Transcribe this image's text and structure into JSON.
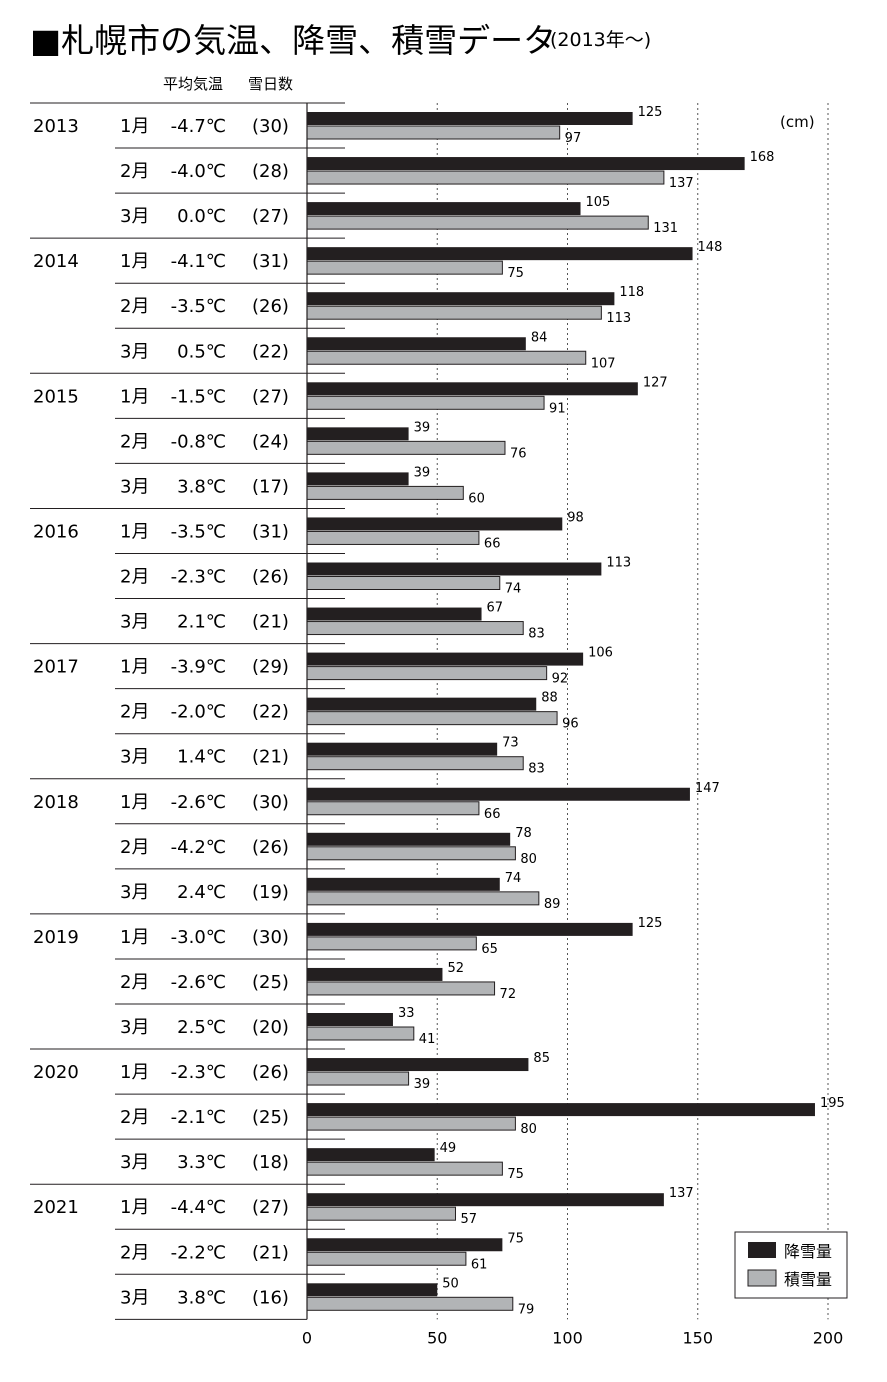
{
  "title": {
    "main": "■札幌市の気温、降雪、積雪データ",
    "sub": "(2013年〜)"
  },
  "headers": {
    "temp": "平均気温",
    "days": "雪日数"
  },
  "colors": {
    "snowfall": "#231f20",
    "depth": "#b2b4b6",
    "depth_border": "#231f20",
    "rule": "#231f20",
    "grid": "#555555"
  },
  "chart_data": {
    "type": "bar",
    "orientation": "horizontal",
    "unit": "(cm)",
    "xlim": [
      0,
      200
    ],
    "xticks": [
      "0",
      "50",
      "100",
      "150",
      "200"
    ],
    "grid": "dotted vertical lines at 50, 100, 150, 200",
    "legend_position": "bottom-right",
    "series": [
      {
        "name": "降雪量",
        "color": "#231f20"
      },
      {
        "name": "積雪量",
        "color": "#b2b4b6"
      }
    ],
    "rows": [
      {
        "year": "2013",
        "month": "1月",
        "temp": "-4.7℃",
        "days": "(30)",
        "snowfall": 125,
        "depth": 97
      },
      {
        "year": "",
        "month": "2月",
        "temp": "-4.0℃",
        "days": "(28)",
        "snowfall": 168,
        "depth": 137
      },
      {
        "year": "",
        "month": "3月",
        "temp": "0.0℃",
        "days": "(27)",
        "snowfall": 105,
        "depth": 131
      },
      {
        "year": "2014",
        "month": "1月",
        "temp": "-4.1℃",
        "days": "(31)",
        "snowfall": 148,
        "depth": 75
      },
      {
        "year": "",
        "month": "2月",
        "temp": "-3.5℃",
        "days": "(26)",
        "snowfall": 118,
        "depth": 113
      },
      {
        "year": "",
        "month": "3月",
        "temp": "0.5℃",
        "days": "(22)",
        "snowfall": 84,
        "depth": 107
      },
      {
        "year": "2015",
        "month": "1月",
        "temp": "-1.5℃",
        "days": "(27)",
        "snowfall": 127,
        "depth": 91
      },
      {
        "year": "",
        "month": "2月",
        "temp": "-0.8℃",
        "days": "(24)",
        "snowfall": 39,
        "depth": 76
      },
      {
        "year": "",
        "month": "3月",
        "temp": "3.8℃",
        "days": "(17)",
        "snowfall": 39,
        "depth": 60
      },
      {
        "year": "2016",
        "month": "1月",
        "temp": "-3.5℃",
        "days": "(31)",
        "snowfall": 98,
        "depth": 66
      },
      {
        "year": "",
        "month": "2月",
        "temp": "-2.3℃",
        "days": "(26)",
        "snowfall": 113,
        "depth": 74
      },
      {
        "year": "",
        "month": "3月",
        "temp": "2.1℃",
        "days": "(21)",
        "snowfall": 67,
        "depth": 83
      },
      {
        "year": "2017",
        "month": "1月",
        "temp": "-3.9℃",
        "days": "(29)",
        "snowfall": 106,
        "depth": 92
      },
      {
        "year": "",
        "month": "2月",
        "temp": "-2.0℃",
        "days": "(22)",
        "snowfall": 88,
        "depth": 96
      },
      {
        "year": "",
        "month": "3月",
        "temp": "1.4℃",
        "days": "(21)",
        "snowfall": 73,
        "depth": 83
      },
      {
        "year": "2018",
        "month": "1月",
        "temp": "-2.6℃",
        "days": "(30)",
        "snowfall": 147,
        "depth": 66
      },
      {
        "year": "",
        "month": "2月",
        "temp": "-4.2℃",
        "days": "(26)",
        "snowfall": 78,
        "depth": 80
      },
      {
        "year": "",
        "month": "3月",
        "temp": "2.4℃",
        "days": "(19)",
        "snowfall": 74,
        "depth": 89
      },
      {
        "year": "2019",
        "month": "1月",
        "temp": "-3.0℃",
        "days": "(30)",
        "snowfall": 125,
        "depth": 65
      },
      {
        "year": "",
        "month": "2月",
        "temp": "-2.6℃",
        "days": "(25)",
        "snowfall": 52,
        "depth": 72
      },
      {
        "year": "",
        "month": "3月",
        "temp": "2.5℃",
        "days": "(20)",
        "snowfall": 33,
        "depth": 41
      },
      {
        "year": "2020",
        "month": "1月",
        "temp": "-2.3℃",
        "days": "(26)",
        "snowfall": 85,
        "depth": 39
      },
      {
        "year": "",
        "month": "2月",
        "temp": "-2.1℃",
        "days": "(25)",
        "snowfall": 195,
        "depth": 80
      },
      {
        "year": "",
        "month": "3月",
        "temp": "3.3℃",
        "days": "(18)",
        "snowfall": 49,
        "depth": 75
      },
      {
        "year": "2021",
        "month": "1月",
        "temp": "-4.4℃",
        "days": "(27)",
        "snowfall": 137,
        "depth": 57
      },
      {
        "year": "",
        "month": "2月",
        "temp": "-2.2℃",
        "days": "(21)",
        "snowfall": 75,
        "depth": 61
      },
      {
        "year": "",
        "month": "3月",
        "temp": "3.8℃",
        "days": "(16)",
        "snowfall": 50,
        "depth": 79
      }
    ]
  }
}
